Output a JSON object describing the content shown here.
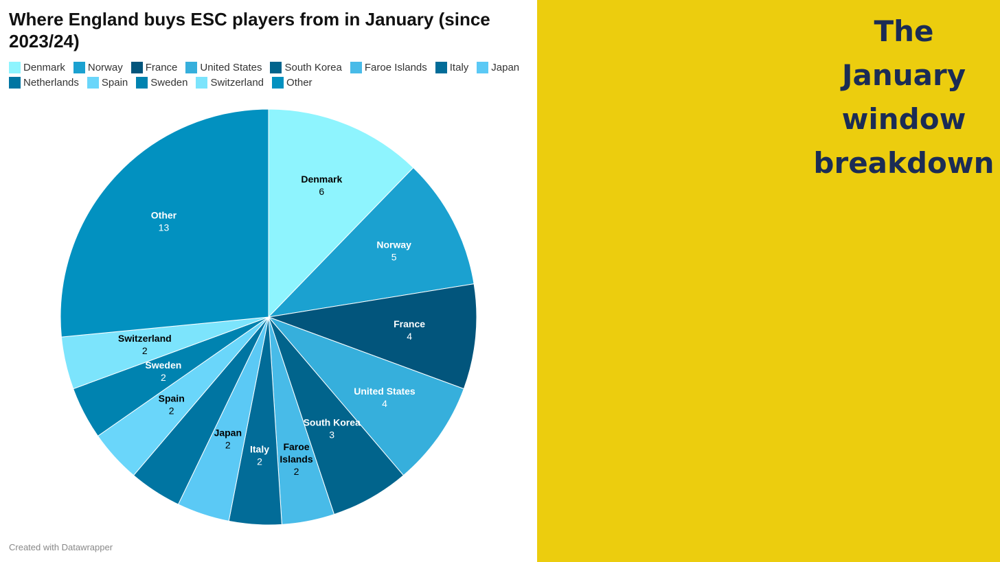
{
  "title": "Where England buys ESC players from in January (since 2023/24)",
  "credit": "Created with Datawrapper",
  "side_heading": [
    "The",
    "January",
    "window",
    "breakdown"
  ],
  "colors": {
    "yellow_panel": "#eccd0e",
    "heading_text": "#1b2c55"
  },
  "chart_data": {
    "type": "pie",
    "title": "Where England buys ESC players from in January (since 2023/24)",
    "legend_position": "top",
    "slices": [
      {
        "label": "Denmark",
        "value": 6,
        "color": "#8ef4fe",
        "label_color": "#000000"
      },
      {
        "label": "Norway",
        "value": 5,
        "color": "#1ba1d0",
        "label_color": "#ffffff"
      },
      {
        "label": "France",
        "value": 4,
        "color": "#02557c",
        "label_color": "#ffffff"
      },
      {
        "label": "United States",
        "value": 4,
        "color": "#36afdc",
        "label_color": "#ffffff"
      },
      {
        "label": "South Korea",
        "value": 3,
        "color": "#01648c",
        "label_color": "#ffffff"
      },
      {
        "label": "Faroe Islands",
        "value": 2,
        "color": "#48bbe8",
        "label_color": "#000000"
      },
      {
        "label": "Italy",
        "value": 2,
        "color": "#026c98",
        "label_color": "#ffffff"
      },
      {
        "label": "Japan",
        "value": 2,
        "color": "#5bc9f5",
        "label_color": "#000000"
      },
      {
        "label": "Netherlands",
        "value": 2,
        "color": "#0075a2",
        "label_color": "#ffffff"
      },
      {
        "label": "Spain",
        "value": 2,
        "color": "#6ad6fa",
        "label_color": "#000000"
      },
      {
        "label": "Sweden",
        "value": 2,
        "color": "#0083b0",
        "label_color": "#ffffff"
      },
      {
        "label": "Switzerland",
        "value": 2,
        "color": "#7ce4fc",
        "label_color": "#000000"
      },
      {
        "label": "Other",
        "value": 13,
        "color": "#0291c0",
        "label_color": "#ffffff"
      }
    ]
  }
}
